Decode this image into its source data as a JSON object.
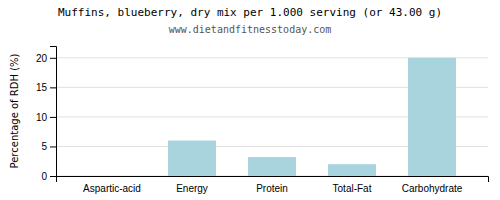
{
  "chart_data": {
    "type": "bar",
    "title": "Muffins, blueberry, dry mix per 1.000 serving (or 43.00 g)",
    "subtitle": "www.dietandfitnesstoday.com",
    "categories": [
      "Aspartic-acid",
      "Energy",
      "Protein",
      "Total-Fat",
      "Carbohydrate"
    ],
    "values": [
      0,
      6,
      3.2,
      2,
      20
    ],
    "color": "#a8d4de",
    "ylabel": "Percentage of RDH (%)",
    "ylim": [
      0,
      22
    ],
    "yticks": [
      0,
      5,
      10,
      15,
      20
    ],
    "grid": true
  }
}
